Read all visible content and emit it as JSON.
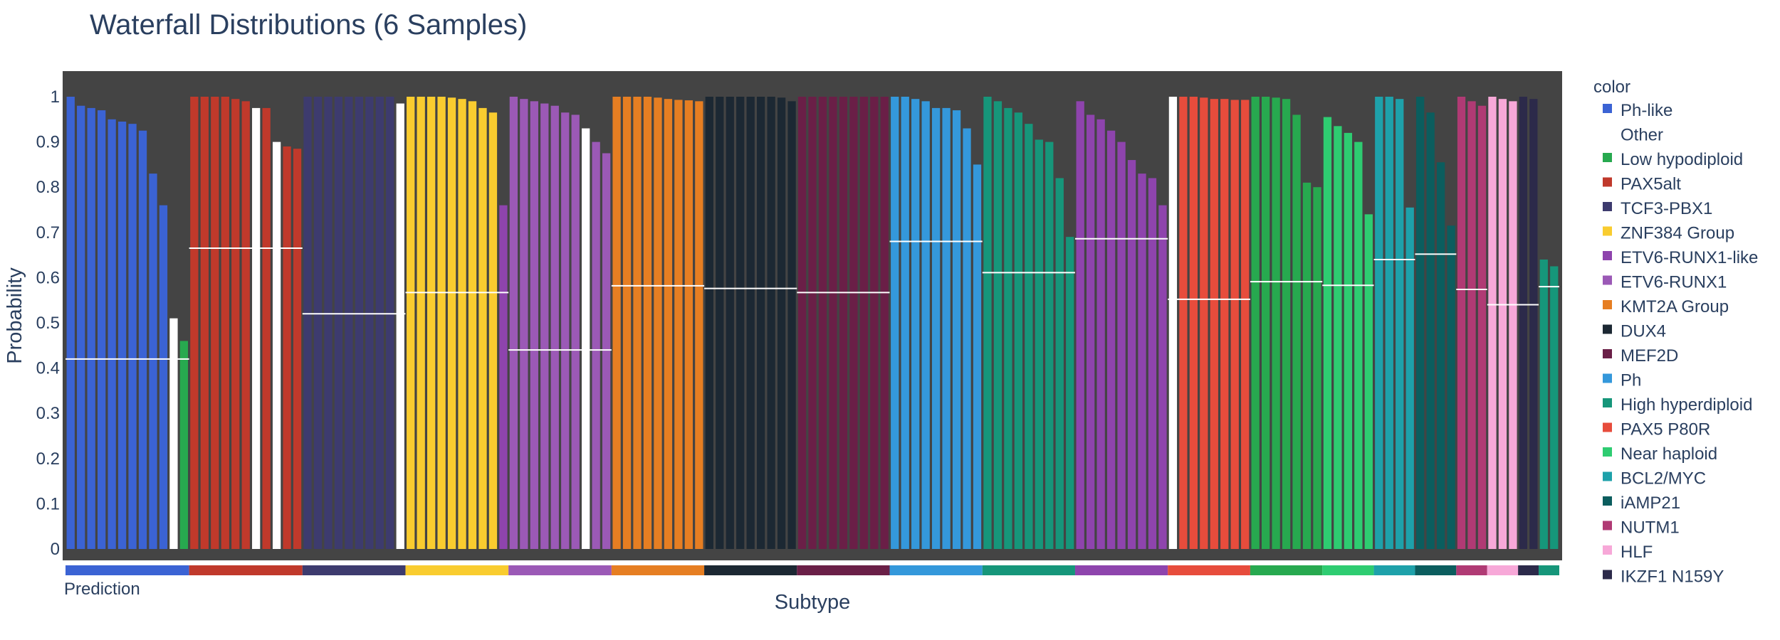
{
  "chart_data": {
    "type": "bar",
    "title": "Waterfall Distributions (6 Samples)",
    "xlabel": "Subtype",
    "ylabel": "Probability",
    "ylim": [
      0,
      1.05
    ],
    "y_ticks": [
      "0",
      "0.1",
      "0.2",
      "0.3",
      "0.4",
      "0.5",
      "0.6",
      "0.7",
      "0.8",
      "0.9",
      "1"
    ],
    "strip_label": "Prediction",
    "legend_title": "color",
    "legend_position": "right",
    "colors": {
      "Ph-like": "#3b63d4",
      "Other": "#ffffff",
      "Low hypodiploid": "#27a94f",
      "PAX5alt": "#c0392b",
      "TCF3-PBX1": "#3d3b6e",
      "ZNF384 Group": "#f9cc2f",
      "ETV6-RUNX1-like": "#8e44ad",
      "ETV6-RUNX1": "#9b59b6",
      "KMT2A Group": "#e67e22",
      "DUX4": "#1c2833",
      "MEF2D": "#6a1f47",
      "Ph": "#3498db",
      "High hyperdiploid": "#16967a",
      "PAX5 P80R": "#e74c3c",
      "Near haploid": "#2ecc71",
      "BCL2/MYC": "#1ea1aa",
      "iAMP21": "#0b5d5e",
      "NUTM1": "#b03a74",
      "HLF": "#f7a8d8",
      "IKZF1 N159Y": "#2c2a4a"
    },
    "legend_entries": [
      "Ph-like",
      "Other",
      "Low hypodiploid",
      "PAX5alt",
      "TCF3-PBX1",
      "ZNF384 Group",
      "ETV6-RUNX1-like",
      "ETV6-RUNX1",
      "KMT2A Group",
      "DUX4",
      "MEF2D",
      "Ph",
      "High hyperdiploid",
      "PAX5 P80R",
      "Near haploid",
      "BCL2/MYC",
      "iAMP21",
      "NUTM1",
      "HLF",
      "IKZF1 N159Y"
    ],
    "groups": [
      {
        "strip": "Ph-like",
        "mean": 0.42,
        "bars": [
          [
            "Ph-like",
            1.0
          ],
          [
            "Ph-like",
            0.98
          ],
          [
            "Ph-like",
            0.975
          ],
          [
            "Ph-like",
            0.97
          ],
          [
            "Ph-like",
            0.95
          ],
          [
            "Ph-like",
            0.945
          ],
          [
            "Ph-like",
            0.94
          ],
          [
            "Ph-like",
            0.925
          ],
          [
            "Ph-like",
            0.83
          ],
          [
            "Ph-like",
            0.76
          ],
          [
            "Other",
            0.51
          ],
          [
            "Low hypodiploid",
            0.46
          ]
        ]
      },
      {
        "strip": "PAX5alt",
        "mean": 0.665,
        "bars": [
          [
            "PAX5alt",
            1.0
          ],
          [
            "PAX5alt",
            1.0
          ],
          [
            "PAX5alt",
            1.0
          ],
          [
            "PAX5alt",
            1.0
          ],
          [
            "PAX5alt",
            0.995
          ],
          [
            "PAX5alt",
            0.99
          ],
          [
            "Other",
            0.975
          ],
          [
            "PAX5alt",
            0.975
          ],
          [
            "Other",
            0.9
          ],
          [
            "PAX5alt",
            0.89
          ],
          [
            "PAX5alt",
            0.885
          ]
        ]
      },
      {
        "strip": "TCF3-PBX1",
        "mean": 0.52,
        "bars": [
          [
            "TCF3-PBX1",
            1.0
          ],
          [
            "TCF3-PBX1",
            1.0
          ],
          [
            "TCF3-PBX1",
            1.0
          ],
          [
            "TCF3-PBX1",
            1.0
          ],
          [
            "TCF3-PBX1",
            1.0
          ],
          [
            "TCF3-PBX1",
            1.0
          ],
          [
            "TCF3-PBX1",
            1.0
          ],
          [
            "TCF3-PBX1",
            1.0
          ],
          [
            "TCF3-PBX1",
            1.0
          ],
          [
            "Other",
            0.985
          ]
        ]
      },
      {
        "strip": "ZNF384 Group",
        "mean": 0.567,
        "bars": [
          [
            "ZNF384 Group",
            1.0
          ],
          [
            "ZNF384 Group",
            1.0
          ],
          [
            "ZNF384 Group",
            1.0
          ],
          [
            "ZNF384 Group",
            1.0
          ],
          [
            "ZNF384 Group",
            0.998
          ],
          [
            "ZNF384 Group",
            0.995
          ],
          [
            "ZNF384 Group",
            0.99
          ],
          [
            "ZNF384 Group",
            0.975
          ],
          [
            "ZNF384 Group",
            0.965
          ],
          [
            "ETV6-RUNX1-like",
            0.76
          ]
        ]
      },
      {
        "strip": "ETV6-RUNX1",
        "mean": 0.44,
        "bars": [
          [
            "ETV6-RUNX1",
            1.0
          ],
          [
            "ETV6-RUNX1",
            0.995
          ],
          [
            "ETV6-RUNX1",
            0.99
          ],
          [
            "ETV6-RUNX1",
            0.985
          ],
          [
            "ETV6-RUNX1",
            0.98
          ],
          [
            "ETV6-RUNX1",
            0.965
          ],
          [
            "ETV6-RUNX1",
            0.96
          ],
          [
            "Other",
            0.93
          ],
          [
            "ETV6-RUNX1",
            0.9
          ],
          [
            "ETV6-RUNX1",
            0.875
          ]
        ]
      },
      {
        "strip": "KMT2A Group",
        "mean": 0.582,
        "bars": [
          [
            "KMT2A Group",
            1.0
          ],
          [
            "KMT2A Group",
            1.0
          ],
          [
            "KMT2A Group",
            1.0
          ],
          [
            "KMT2A Group",
            1.0
          ],
          [
            "KMT2A Group",
            0.998
          ],
          [
            "KMT2A Group",
            0.995
          ],
          [
            "KMT2A Group",
            0.993
          ],
          [
            "KMT2A Group",
            0.992
          ],
          [
            "KMT2A Group",
            0.99
          ]
        ]
      },
      {
        "strip": "DUX4",
        "mean": 0.576,
        "bars": [
          [
            "DUX4",
            1.0
          ],
          [
            "DUX4",
            1.0
          ],
          [
            "DUX4",
            1.0
          ],
          [
            "DUX4",
            1.0
          ],
          [
            "DUX4",
            1.0
          ],
          [
            "DUX4",
            1.0
          ],
          [
            "DUX4",
            1.0
          ],
          [
            "DUX4",
            0.998
          ],
          [
            "DUX4",
            0.99
          ]
        ]
      },
      {
        "strip": "MEF2D",
        "mean": 0.567,
        "bars": [
          [
            "MEF2D",
            1.0
          ],
          [
            "MEF2D",
            1.0
          ],
          [
            "MEF2D",
            1.0
          ],
          [
            "MEF2D",
            1.0
          ],
          [
            "MEF2D",
            1.0
          ],
          [
            "MEF2D",
            1.0
          ],
          [
            "MEF2D",
            1.0
          ],
          [
            "MEF2D",
            1.0
          ],
          [
            "MEF2D",
            1.0
          ]
        ]
      },
      {
        "strip": "Ph",
        "mean": 0.68,
        "bars": [
          [
            "Ph",
            1.0
          ],
          [
            "Ph",
            1.0
          ],
          [
            "Ph",
            0.995
          ],
          [
            "Ph",
            0.99
          ],
          [
            "Ph",
            0.975
          ],
          [
            "Ph",
            0.975
          ],
          [
            "Ph",
            0.97
          ],
          [
            "Ph",
            0.93
          ],
          [
            "Ph",
            0.85
          ]
        ]
      },
      {
        "strip": "High hyperdiploid",
        "mean": 0.611,
        "bars": [
          [
            "High hyperdiploid",
            1.0
          ],
          [
            "High hyperdiploid",
            0.99
          ],
          [
            "High hyperdiploid",
            0.975
          ],
          [
            "High hyperdiploid",
            0.965
          ],
          [
            "High hyperdiploid",
            0.94
          ],
          [
            "High hyperdiploid",
            0.905
          ],
          [
            "High hyperdiploid",
            0.9
          ],
          [
            "High hyperdiploid",
            0.82
          ],
          [
            "High hyperdiploid",
            0.69
          ]
        ]
      },
      {
        "strip": "ETV6-RUNX1-like",
        "mean": 0.686,
        "bars": [
          [
            "ETV6-RUNX1-like",
            0.99
          ],
          [
            "ETV6-RUNX1-like",
            0.96
          ],
          [
            "ETV6-RUNX1-like",
            0.95
          ],
          [
            "ETV6-RUNX1-like",
            0.925
          ],
          [
            "ETV6-RUNX1-like",
            0.9
          ],
          [
            "ETV6-RUNX1-like",
            0.86
          ],
          [
            "ETV6-RUNX1-like",
            0.83
          ],
          [
            "ETV6-RUNX1-like",
            0.82
          ],
          [
            "ETV6-RUNX1-like",
            0.76
          ]
        ]
      },
      {
        "strip": "PAX5 P80R",
        "mean": 0.552,
        "bars": [
          [
            "Other",
            1.0
          ],
          [
            "PAX5 P80R",
            1.0
          ],
          [
            "PAX5 P80R",
            1.0
          ],
          [
            "PAX5 P80R",
            0.998
          ],
          [
            "PAX5 P80R",
            0.995
          ],
          [
            "PAX5 P80R",
            0.995
          ],
          [
            "PAX5 P80R",
            0.993
          ],
          [
            "PAX5 P80R",
            0.993
          ]
        ]
      },
      {
        "strip": "Low hypodiploid",
        "mean": 0.591,
        "bars": [
          [
            "Low hypodiploid",
            1.0
          ],
          [
            "Low hypodiploid",
            1.0
          ],
          [
            "Low hypodiploid",
            0.998
          ],
          [
            "Low hypodiploid",
            0.995
          ],
          [
            "Low hypodiploid",
            0.96
          ],
          [
            "Low hypodiploid",
            0.81
          ],
          [
            "Low hypodiploid",
            0.8
          ]
        ]
      },
      {
        "strip": "Near haploid",
        "mean": 0.583,
        "bars": [
          [
            "Near haploid",
            0.955
          ],
          [
            "Near haploid",
            0.935
          ],
          [
            "Near haploid",
            0.92
          ],
          [
            "Near haploid",
            0.9
          ],
          [
            "Near haploid",
            0.74
          ]
        ]
      },
      {
        "strip": "BCL2/MYC",
        "mean": 0.64,
        "bars": [
          [
            "BCL2/MYC",
            1.0
          ],
          [
            "BCL2/MYC",
            1.0
          ],
          [
            "BCL2/MYC",
            0.995
          ],
          [
            "BCL2/MYC",
            0.755
          ]
        ]
      },
      {
        "strip": "iAMP21",
        "mean": 0.652,
        "bars": [
          [
            "iAMP21",
            1.0
          ],
          [
            "iAMP21",
            0.965
          ],
          [
            "iAMP21",
            0.855
          ],
          [
            "iAMP21",
            0.715
          ]
        ]
      },
      {
        "strip": "NUTM1",
        "mean": 0.574,
        "bars": [
          [
            "NUTM1",
            1.0
          ],
          [
            "NUTM1",
            0.99
          ],
          [
            "NUTM1",
            0.98
          ]
        ]
      },
      {
        "strip": "HLF",
        "mean": 0.54,
        "bars": [
          [
            "HLF",
            1.0
          ],
          [
            "HLF",
            0.995
          ],
          [
            "HLF",
            0.99
          ]
        ]
      },
      {
        "strip": "IKZF1 N159Y",
        "mean": 0.54,
        "bars": [
          [
            "IKZF1 N159Y",
            1.0
          ],
          [
            "IKZF1 N159Y",
            0.995
          ]
        ]
      },
      {
        "strip": "High hyperdiploid",
        "mean": 0.58,
        "bars": [
          [
            "High hyperdiploid",
            0.64
          ],
          [
            "High hyperdiploid",
            0.625
          ]
        ]
      }
    ]
  }
}
